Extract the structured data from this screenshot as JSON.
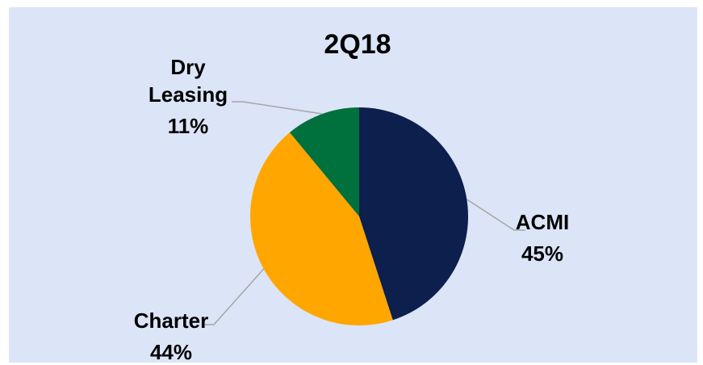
{
  "chart_data": {
    "type": "pie",
    "title": "2Q18",
    "slices": [
      {
        "label": "ACMI",
        "value": 45,
        "value_label": "45%",
        "color": "#0c1f4d"
      },
      {
        "label": "Charter",
        "value": 44,
        "value_label": "44%",
        "color": "#ffa600"
      },
      {
        "label": "Dry Leasing",
        "value": 11,
        "value_label": "11%",
        "color": "#00703c"
      }
    ],
    "start_angle_deg": 0,
    "direction": "clockwise",
    "legend": "none"
  }
}
